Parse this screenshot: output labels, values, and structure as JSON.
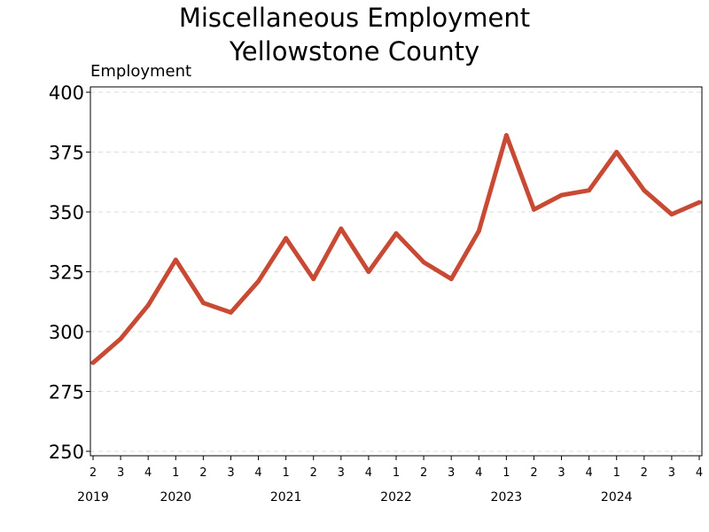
{
  "chart_data": {
    "type": "line",
    "title": [
      "Miscellaneous Employment",
      "Yellowstone County"
    ],
    "ylabel": "Employment",
    "xlabel": "",
    "ylim": [
      250,
      400
    ],
    "yticks": [
      250,
      275,
      300,
      325,
      350,
      375,
      400
    ],
    "grid": "horizontal dashed",
    "legend": "none",
    "line_color": "#c94a34",
    "quarters": [
      "2",
      "3",
      "4",
      "1",
      "2",
      "3",
      "4",
      "1",
      "2",
      "3",
      "4",
      "1",
      "2",
      "3",
      "4",
      "1",
      "2",
      "3",
      "4",
      "1",
      "2",
      "3",
      "4"
    ],
    "years": [
      {
        "label": "2019",
        "start_index": 0
      },
      {
        "label": "2020",
        "start_index": 3
      },
      {
        "label": "2021",
        "start_index": 7
      },
      {
        "label": "2022",
        "start_index": 11
      },
      {
        "label": "2023",
        "start_index": 15
      },
      {
        "label": "2024",
        "start_index": 19
      }
    ],
    "series": [
      {
        "values": [
          287,
          297,
          311,
          330,
          312,
          308,
          321,
          339,
          322,
          343,
          325,
          341,
          329,
          322,
          342,
          382,
          351,
          357,
          359,
          375,
          359,
          349,
          354
        ]
      }
    ]
  }
}
